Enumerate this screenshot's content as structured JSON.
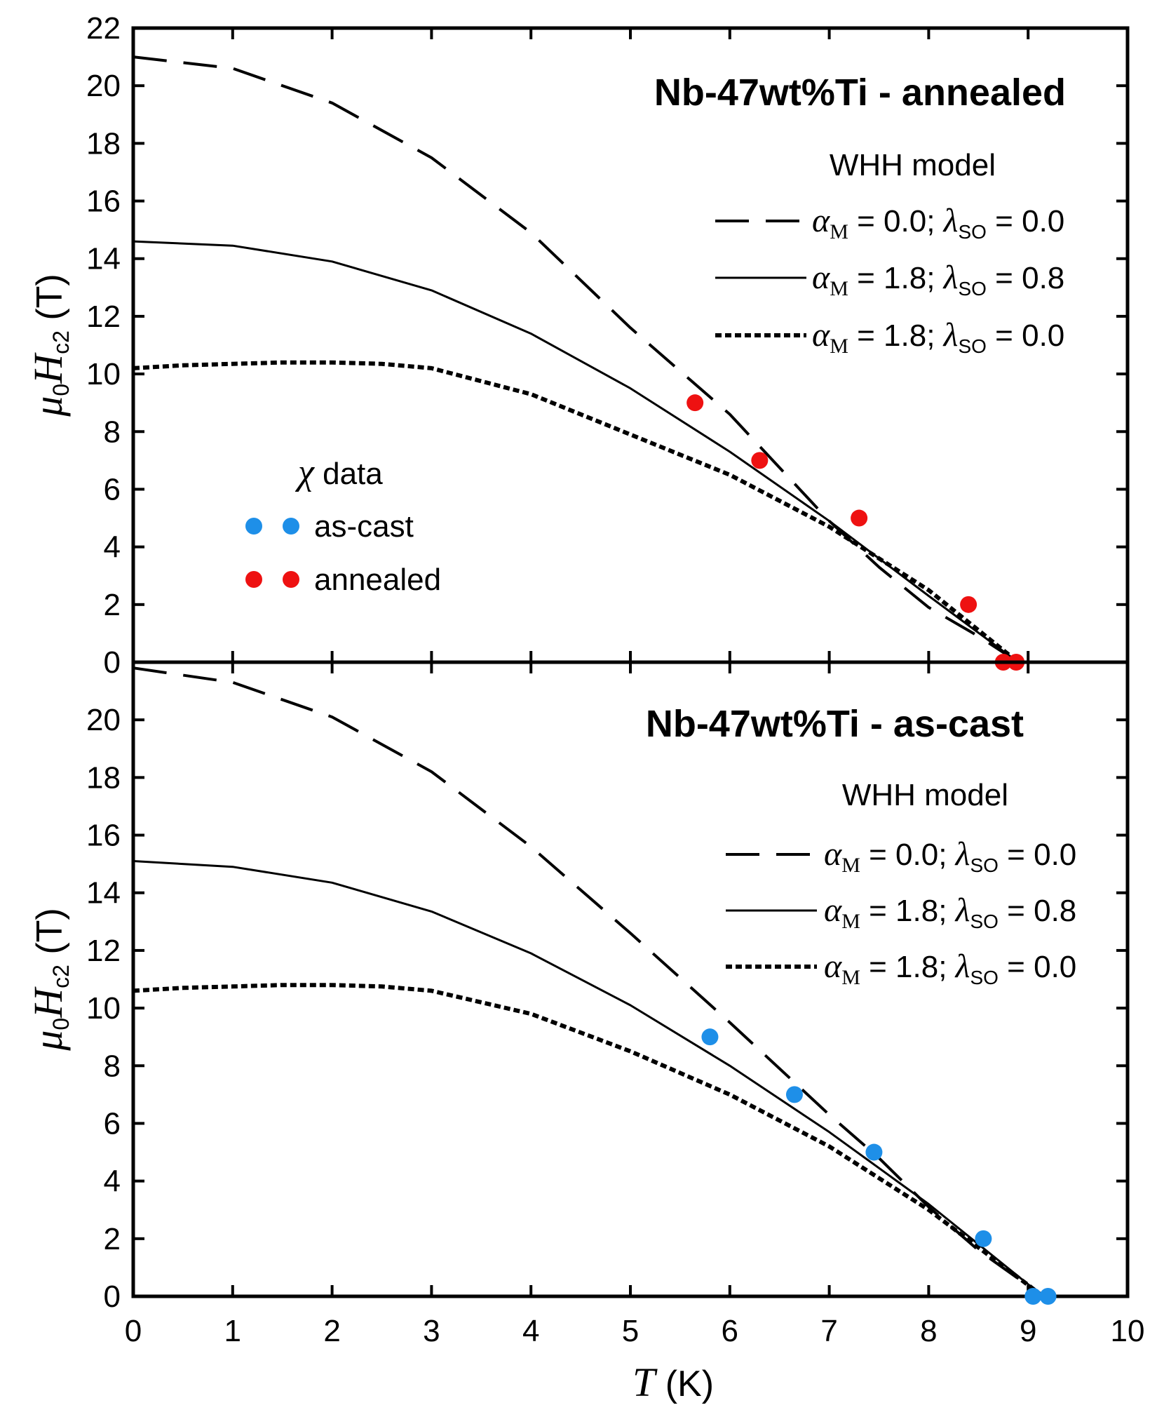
{
  "chart_data": [
    {
      "type": "line",
      "title": "Nb-47wt%Ti - annealed",
      "xlabel": {
        "italic": "T",
        "rest": " (K)"
      },
      "ylabel": {
        "mu": "μ",
        "zero": "0",
        "H": "H",
        "sub": "c2",
        "unit": "(T)"
      },
      "xlim": [
        0,
        10
      ],
      "ylim": [
        0,
        22
      ],
      "yticks": [
        0,
        2,
        4,
        6,
        8,
        10,
        12,
        14,
        16,
        18,
        20,
        22
      ],
      "model_label": "WHH model",
      "series": [
        {
          "name": "αM = 0.0; λSO = 0.0",
          "style": "dashed",
          "alpha": "0.0",
          "lambda": "0.0",
          "x": [
            0,
            1,
            2,
            3,
            4,
            5,
            6,
            7,
            7.5,
            8,
            8.5,
            8.9
          ],
          "y": [
            21.0,
            20.6,
            19.4,
            17.5,
            14.9,
            11.6,
            8.6,
            4.9,
            3.3,
            1.9,
            0.9,
            0.0
          ]
        },
        {
          "name": "αM = 1.8; λSO = 0.8",
          "style": "solid",
          "alpha": "1.8",
          "lambda": "0.8",
          "x": [
            0,
            1,
            2,
            3,
            4,
            5,
            6,
            7,
            8,
            8.9
          ],
          "y": [
            14.6,
            14.45,
            13.9,
            12.9,
            11.4,
            9.5,
            7.3,
            4.9,
            2.3,
            0.0
          ]
        },
        {
          "name": "αM = 1.8; λSO = 0.0",
          "style": "dotted",
          "alpha": "1.8",
          "lambda": "0.0",
          "x": [
            0,
            0.5,
            1,
            1.5,
            2,
            2.5,
            3,
            4,
            5,
            6,
            7,
            8,
            8.9
          ],
          "y": [
            10.2,
            10.3,
            10.35,
            10.4,
            10.4,
            10.35,
            10.2,
            9.3,
            7.9,
            6.5,
            4.7,
            2.5,
            0.0
          ]
        }
      ],
      "data_series": {
        "name": "annealed",
        "color": "#ee1111",
        "points": [
          [
            5.65,
            9.0
          ],
          [
            6.3,
            7.0
          ],
          [
            7.3,
            5.0
          ],
          [
            8.4,
            2.0
          ],
          [
            8.75,
            0.0
          ],
          [
            8.88,
            0.0
          ]
        ]
      },
      "chi_legend": {
        "title_symbol": "χ",
        "title_text": " data",
        "items": [
          {
            "label": "as-cast",
            "color": "#1e8fe8"
          },
          {
            "label": "annealed",
            "color": "#ee1111"
          }
        ]
      }
    },
    {
      "type": "line",
      "title": "Nb-47wt%Ti - as-cast",
      "xlabel": {
        "italic": "T",
        "rest": " (K)"
      },
      "ylabel": {
        "mu": "μ",
        "zero": "0",
        "H": "H",
        "sub": "c2",
        "unit": "(T)"
      },
      "xlim": [
        0,
        10
      ],
      "ylim": [
        0,
        22
      ],
      "yticks": [
        0,
        2,
        4,
        6,
        8,
        10,
        12,
        14,
        16,
        18,
        20
      ],
      "xticks": [
        0,
        1,
        2,
        3,
        4,
        5,
        6,
        7,
        8,
        9,
        10
      ],
      "model_label": "WHH model",
      "series": [
        {
          "name": "αM = 0.0; λSO = 0.0",
          "style": "dashed",
          "alpha": "0.0",
          "lambda": "0.0",
          "x": [
            0,
            1,
            2,
            3,
            4,
            5,
            6,
            7,
            7.5,
            8,
            8.5,
            9.15
          ],
          "y": [
            21.8,
            21.3,
            20.1,
            18.2,
            15.6,
            12.6,
            9.5,
            6.3,
            4.8,
            3.1,
            1.6,
            0.0
          ]
        },
        {
          "name": "αM = 1.8; λSO = 0.8",
          "style": "solid",
          "alpha": "1.8",
          "lambda": "0.8",
          "x": [
            0,
            1,
            2,
            3,
            4,
            5,
            6,
            7,
            8,
            9.15
          ],
          "y": [
            15.1,
            14.9,
            14.35,
            13.35,
            11.9,
            10.1,
            8.0,
            5.7,
            3.2,
            0.0
          ]
        },
        {
          "name": "αM = 1.8; λSO = 0.0",
          "style": "dotted",
          "alpha": "1.8",
          "lambda": "0.0",
          "x": [
            0,
            0.5,
            1,
            1.5,
            2,
            2.5,
            3,
            4,
            5,
            6,
            7,
            8,
            9.15
          ],
          "y": [
            10.6,
            10.7,
            10.75,
            10.8,
            10.8,
            10.75,
            10.6,
            9.8,
            8.5,
            7.0,
            5.2,
            3.0,
            0.0
          ]
        }
      ],
      "data_series": {
        "name": "as-cast",
        "color": "#1e8fe8",
        "points": [
          [
            5.8,
            9.0
          ],
          [
            6.65,
            7.0
          ],
          [
            7.45,
            5.0
          ],
          [
            8.55,
            2.0
          ],
          [
            9.05,
            0.0
          ],
          [
            9.2,
            0.0
          ]
        ]
      }
    }
  ]
}
